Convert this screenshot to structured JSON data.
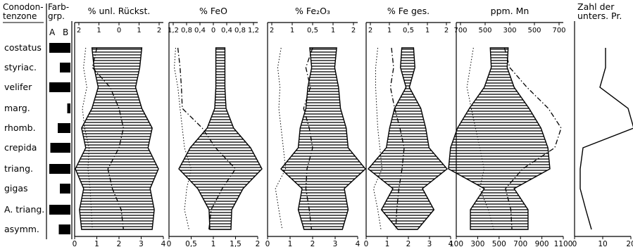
{
  "header": {
    "zone_title": "Conodon-\ntenzone",
    "farb_title": "Farb-\ngrp.",
    "farb_a": "A",
    "farb_b": "B"
  },
  "zones": [
    "costatus",
    "styriac.",
    "velifer",
    "marg.",
    "rhomb.",
    "crepida",
    "triang.",
    "gigas",
    "A. triang.",
    "asymm."
  ],
  "farb_widths": [
    1.0,
    0.5,
    1.0,
    0.15,
    0.6,
    0.95,
    1.0,
    0.5,
    1.0,
    0.55
  ],
  "chart_data": [
    {
      "type": "area",
      "title": "% unl. Rückst.",
      "top_ticks": [
        "2",
        "1",
        "0",
        "1",
        "2"
      ],
      "bottom_ticks": [
        "0",
        "1",
        "2",
        "3",
        "4"
      ],
      "bottom_range": [
        0,
        4
      ],
      "half_widths": [
        0.6,
        0.55,
        0.45,
        0.6,
        0.85,
        0.75,
        1.0,
        0.8,
        0.9,
        0.85
      ],
      "dotted": [
        0.5,
        0.4,
        0.55,
        0.35,
        0.45,
        0.65,
        0.6,
        0.7,
        0.75,
        0.8
      ],
      "dashdot": [
        1.0,
        0.8,
        1.6,
        2.0,
        2.2,
        2.0,
        1.5,
        1.7,
        2.1,
        2.2
      ]
    },
    {
      "type": "area",
      "title": "% FeO",
      "top_ticks": [
        "1,2",
        "0,8",
        "0,4",
        "0",
        "0,4",
        "0,8",
        "1,2"
      ],
      "bottom_ticks": [
        "0",
        "0,5",
        "1",
        "1,5",
        "2"
      ],
      "bottom_range": [
        0,
        2
      ],
      "half_widths": [
        0.12,
        0.12,
        0.12,
        0.15,
        0.35,
        0.8,
        1.1,
        0.6,
        0.3,
        0.28
      ],
      "dotted": [
        0.15,
        0.12,
        0.2,
        0.25,
        0.3,
        0.35,
        0.5,
        0.4,
        0.35,
        0.45
      ],
      "dashdot": [
        0.2,
        0.25,
        0.28,
        0.3,
        0.75,
        1.05,
        1.5,
        1.2,
        0.95,
        0.9
      ]
    },
    {
      "type": "area",
      "title": "% Fe₂O₃",
      "top_ticks": [
        "2",
        "1",
        "0,5",
        "1",
        "2"
      ],
      "bottom_ticks": [
        "0",
        "1",
        "2",
        "3",
        "4"
      ],
      "bottom_range": [
        0,
        4
      ],
      "half_widths": [
        0.35,
        0.3,
        0.4,
        0.45,
        0.6,
        0.65,
        1.1,
        0.55,
        0.65,
        0.5
      ],
      "dotted": [
        0.6,
        0.45,
        0.55,
        0.5,
        0.6,
        0.7,
        0.8,
        0.35,
        0.5,
        0.65
      ],
      "dashdot": [
        2.0,
        1.7,
        1.9,
        1.6,
        1.85,
        2.0,
        1.75,
        1.7,
        1.85,
        1.95
      ]
    },
    {
      "type": "area",
      "title": "% Fe ges.",
      "top_ticks": [
        "2",
        "1",
        "0,5",
        "1",
        "2"
      ],
      "bottom_ticks": [
        "0",
        "1",
        "2",
        "3",
        "4"
      ],
      "bottom_range": [
        0,
        4
      ],
      "half_widths": [
        0.18,
        0.22,
        0.05,
        0.4,
        0.55,
        0.65,
        1.2,
        0.45,
        0.8,
        0.3
      ],
      "dotted": [
        0.55,
        0.45,
        0.45,
        0.5,
        0.55,
        0.65,
        0.75,
        0.35,
        0.55,
        0.7
      ],
      "dashdot": [
        1.2,
        1.3,
        1.15,
        1.35,
        1.6,
        1.8,
        1.7,
        1.55,
        1.45,
        1.4
      ]
    },
    {
      "type": "area",
      "title": "ppm. Mn",
      "top_ticks": [
        "700",
        "500",
        "300",
        "500",
        "700"
      ],
      "bottom_ticks": [
        "100",
        "300",
        "500",
        "700",
        "900",
        "1100"
      ],
      "bottom_range": [
        100,
        1100
      ],
      "half_widths": [
        90,
        80,
        150,
        300,
        420,
        490,
        510,
        150,
        290,
        290
      ],
      "dotted": [
        260,
        230,
        200,
        240,
        280,
        320,
        360,
        320,
        400,
        450
      ],
      "dashdot": [
        550,
        600,
        760,
        960,
        1080,
        1020,
        720,
        560,
        610,
        620
      ]
    },
    {
      "type": "line",
      "title": "Zahl der\nunters. Pr.",
      "bottom_ticks": [
        "0",
        "10",
        "20"
      ],
      "bottom_range": [
        0,
        20
      ],
      "values": [
        11,
        11,
        9,
        19,
        21,
        3,
        2,
        2,
        4,
        6
      ]
    }
  ]
}
